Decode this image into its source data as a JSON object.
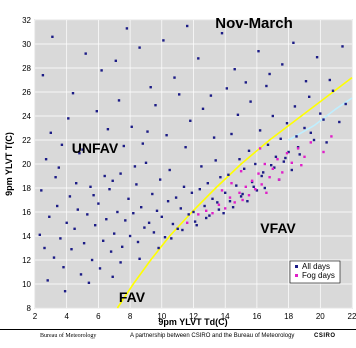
{
  "chart_data": {
    "type": "scatter",
    "title": "Nov-March",
    "xlabel": "9pm YLVT Td(C)",
    "ylabel": "9pm YLVT T(C)",
    "xlim": [
      2,
      22
    ],
    "ylim": [
      8,
      32
    ],
    "xticks": [
      2,
      4,
      6,
      8,
      10,
      12,
      14,
      16,
      18,
      20,
      22
    ],
    "yticks": [
      8,
      10,
      12,
      14,
      16,
      18,
      20,
      22,
      24,
      26,
      28,
      30,
      32
    ],
    "grid": true,
    "legend_position": "bottom-right",
    "regions": [
      {
        "label": "UNFAV",
        "x": 5.5,
        "y": 19.4
      },
      {
        "label": "VFAV",
        "x": 15.2,
        "y": 14.7
      },
      {
        "label": "FAV",
        "x": 7.4,
        "y": 9.2
      }
    ],
    "series": [
      {
        "name": "All days",
        "color": "#1c1c86",
        "points": [
          [
            2.3,
            14.1
          ],
          [
            2.6,
            13.0
          ],
          [
            2.9,
            15.6
          ],
          [
            3.2,
            12.2
          ],
          [
            3.4,
            16.5
          ],
          [
            3.6,
            13.8
          ],
          [
            3.8,
            11.4
          ],
          [
            4.0,
            15.1
          ],
          [
            4.2,
            17.3
          ],
          [
            4.3,
            12.9
          ],
          [
            4.5,
            14.6
          ],
          [
            4.7,
            16.2
          ],
          [
            4.9,
            10.8
          ],
          [
            5.1,
            13.4
          ],
          [
            5.3,
            15.8
          ],
          [
            5.5,
            18.1
          ],
          [
            5.6,
            12.0
          ],
          [
            5.8,
            14.9
          ],
          [
            6.0,
            16.7
          ],
          [
            6.1,
            11.3
          ],
          [
            6.3,
            13.6
          ],
          [
            6.5,
            15.4
          ],
          [
            6.7,
            17.9
          ],
          [
            6.8,
            12.7
          ],
          [
            7.0,
            14.2
          ],
          [
            7.2,
            16.0
          ],
          [
            7.4,
            19.2
          ],
          [
            7.5,
            13.1
          ],
          [
            7.7,
            15.3
          ],
          [
            7.9,
            17.1
          ],
          [
            8.0,
            14.0
          ],
          [
            8.2,
            15.9
          ],
          [
            8.4,
            18.3
          ],
          [
            8.5,
            13.5
          ],
          [
            8.7,
            16.4
          ],
          [
            8.9,
            14.7
          ],
          [
            9.0,
            20.1
          ],
          [
            9.2,
            15.1
          ],
          [
            9.4,
            17.5
          ],
          [
            9.5,
            14.3
          ],
          [
            9.7,
            16.1
          ],
          [
            9.9,
            18.7
          ],
          [
            10.0,
            15.6
          ],
          [
            10.2,
            13.9
          ],
          [
            10.4,
            16.9
          ],
          [
            10.5,
            19.5
          ],
          [
            10.7,
            15.0
          ],
          [
            10.9,
            17.2
          ],
          [
            11.0,
            14.6
          ],
          [
            11.2,
            16.3
          ],
          [
            11.4,
            18.1
          ],
          [
            11.5,
            21.4
          ],
          [
            11.7,
            15.8
          ],
          [
            11.9,
            17.6
          ],
          [
            12.0,
            16.0
          ],
          [
            12.2,
            14.9
          ],
          [
            12.4,
            17.9
          ],
          [
            12.5,
            19.8
          ],
          [
            12.7,
            16.5
          ],
          [
            12.9,
            18.4
          ],
          [
            13.0,
            15.7
          ],
          [
            13.2,
            17.1
          ],
          [
            13.4,
            20.3
          ],
          [
            13.5,
            16.8
          ],
          [
            13.7,
            18.9
          ],
          [
            13.9,
            15.9
          ],
          [
            14.0,
            17.6
          ],
          [
            14.2,
            19.1
          ],
          [
            14.4,
            22.5
          ],
          [
            14.5,
            16.4
          ],
          [
            14.7,
            18.2
          ],
          [
            14.9,
            20.4
          ],
          [
            15.0,
            17.3
          ],
          [
            15.2,
            19.6
          ],
          [
            15.4,
            16.9
          ],
          [
            15.5,
            21.1
          ],
          [
            15.7,
            18.5
          ],
          [
            15.9,
            20.0
          ],
          [
            16.0,
            17.8
          ],
          [
            16.2,
            22.8
          ],
          [
            16.4,
            19.3
          ],
          [
            16.5,
            18.0
          ],
          [
            16.7,
            21.6
          ],
          [
            16.9,
            19.9
          ],
          [
            17.0,
            24.0
          ],
          [
            17.2,
            20.6
          ],
          [
            17.4,
            18.7
          ],
          [
            17.5,
            22.1
          ],
          [
            17.7,
            20.2
          ],
          [
            17.9,
            23.4
          ],
          [
            18.0,
            21.0
          ],
          [
            18.2,
            19.5
          ],
          [
            18.4,
            24.8
          ],
          [
            18.5,
            22.3
          ],
          [
            18.7,
            20.8
          ],
          [
            19.0,
            23.0
          ],
          [
            19.3,
            25.6
          ],
          [
            19.6,
            22.0
          ],
          [
            20.0,
            24.2
          ],
          [
            20.4,
            21.8
          ],
          [
            20.8,
            26.1
          ],
          [
            21.2,
            23.5
          ],
          [
            21.6,
            25.0
          ],
          [
            2.5,
            27.4
          ],
          [
            3.1,
            30.6
          ],
          [
            4.4,
            25.9
          ],
          [
            5.2,
            29.2
          ],
          [
            6.2,
            27.8
          ],
          [
            7.1,
            28.6
          ],
          [
            7.8,
            31.3
          ],
          [
            8.6,
            29.7
          ],
          [
            9.3,
            26.4
          ],
          [
            10.1,
            30.3
          ],
          [
            10.8,
            27.2
          ],
          [
            11.6,
            31.5
          ],
          [
            12.3,
            28.8
          ],
          [
            13.1,
            25.7
          ],
          [
            13.8,
            30.9
          ],
          [
            14.6,
            27.9
          ],
          [
            15.3,
            26.8
          ],
          [
            16.1,
            29.4
          ],
          [
            16.8,
            27.5
          ],
          [
            17.6,
            28.3
          ],
          [
            18.3,
            30.1
          ],
          [
            19.1,
            26.9
          ],
          [
            19.8,
            28.9
          ],
          [
            20.6,
            27.0
          ],
          [
            21.4,
            29.8
          ],
          [
            3.0,
            22.6
          ],
          [
            4.1,
            23.8
          ],
          [
            5.0,
            21.2
          ],
          [
            5.9,
            24.4
          ],
          [
            6.6,
            22.9
          ],
          [
            7.3,
            25.3
          ],
          [
            8.1,
            23.1
          ],
          [
            8.8,
            21.7
          ],
          [
            9.6,
            24.9
          ],
          [
            10.3,
            22.4
          ],
          [
            11.1,
            25.8
          ],
          [
            11.8,
            23.6
          ],
          [
            12.6,
            24.6
          ],
          [
            13.3,
            22.2
          ],
          [
            14.1,
            26.3
          ],
          [
            14.8,
            24.1
          ],
          [
            15.6,
            25.2
          ],
          [
            16.6,
            26.5
          ],
          [
            3.5,
            19.7
          ],
          [
            4.8,
            20.9
          ],
          [
            6.4,
            19.0
          ],
          [
            7.6,
            21.5
          ],
          [
            8.3,
            19.8
          ],
          [
            9.1,
            22.7
          ],
          [
            2.8,
            10.3
          ],
          [
            3.9,
            9.4
          ],
          [
            5.4,
            10.1
          ],
          [
            6.9,
            10.6
          ],
          [
            7.4,
            11.8
          ],
          [
            8.6,
            12.1
          ],
          [
            9.8,
            13.0
          ],
          [
            10.6,
            13.8
          ],
          [
            11.3,
            14.5
          ],
          [
            12.1,
            15.2
          ],
          [
            12.8,
            15.5
          ],
          [
            13.6,
            16.2
          ],
          [
            14.3,
            16.9
          ],
          [
            15.1,
            17.5
          ],
          [
            15.8,
            18.1
          ],
          [
            16.3,
            19.0
          ],
          [
            17.1,
            19.7
          ],
          [
            17.8,
            20.5
          ],
          [
            18.6,
            21.4
          ],
          [
            19.4,
            22.6
          ],
          [
            20.2,
            23.7
          ],
          [
            2.4,
            17.8
          ],
          [
            2.7,
            20.4
          ],
          [
            3.3,
            18.9
          ],
          [
            3.7,
            21.6
          ],
          [
            4.6,
            18.4
          ],
          [
            5.7,
            17.4
          ],
          [
            6.9,
            18.6
          ]
        ]
      },
      {
        "name": "Fog days",
        "color": "#e020c8",
        "points": [
          [
            11.6,
            15.1
          ],
          [
            12.3,
            15.8
          ],
          [
            12.8,
            16.1
          ],
          [
            13.2,
            15.9
          ],
          [
            13.6,
            16.6
          ],
          [
            14.0,
            16.3
          ],
          [
            14.3,
            17.2
          ],
          [
            14.6,
            16.8
          ],
          [
            14.9,
            17.6
          ],
          [
            15.1,
            17.0
          ],
          [
            15.3,
            18.1
          ],
          [
            15.5,
            17.4
          ],
          [
            15.7,
            18.6
          ],
          [
            15.9,
            17.9
          ],
          [
            16.1,
            19.2
          ],
          [
            16.3,
            18.3
          ],
          [
            16.5,
            20.0
          ],
          [
            16.8,
            18.9
          ],
          [
            17.0,
            19.6
          ],
          [
            17.3,
            20.4
          ],
          [
            17.6,
            19.3
          ],
          [
            17.9,
            20.9
          ],
          [
            18.2,
            20.1
          ],
          [
            18.6,
            21.3
          ],
          [
            19.0,
            20.6
          ],
          [
            19.4,
            21.8
          ],
          [
            20.2,
            21.0
          ],
          [
            20.7,
            22.3
          ],
          [
            16.2,
            21.3
          ],
          [
            15.0,
            19.4
          ],
          [
            14.4,
            18.4
          ],
          [
            13.8,
            17.8
          ],
          [
            16.6,
            17.6
          ],
          [
            17.4,
            18.7
          ],
          [
            18.8,
            19.9
          ]
        ]
      }
    ],
    "curves": [
      {
        "color": "#ffff00",
        "points": [
          [
            7.2,
            8
          ],
          [
            8.2,
            10
          ],
          [
            9.3,
            12
          ],
          [
            10.5,
            14
          ],
          [
            11.9,
            16
          ],
          [
            13.4,
            18
          ],
          [
            15.0,
            20
          ],
          [
            16.8,
            22
          ],
          [
            18.8,
            24
          ],
          [
            20.8,
            26
          ],
          [
            22,
            27.2
          ]
        ]
      },
      {
        "color": "#bfefff",
        "points": [
          [
            18.0,
            22
          ],
          [
            19.6,
            23.2
          ],
          [
            21.0,
            24.6
          ],
          [
            22,
            25.5
          ]
        ]
      }
    ]
  },
  "footer": {
    "left": "Bureau of Meteorology",
    "middle": "A partnership between CSIRO and the Bureau of Meteorology",
    "right": "CSIRO"
  }
}
